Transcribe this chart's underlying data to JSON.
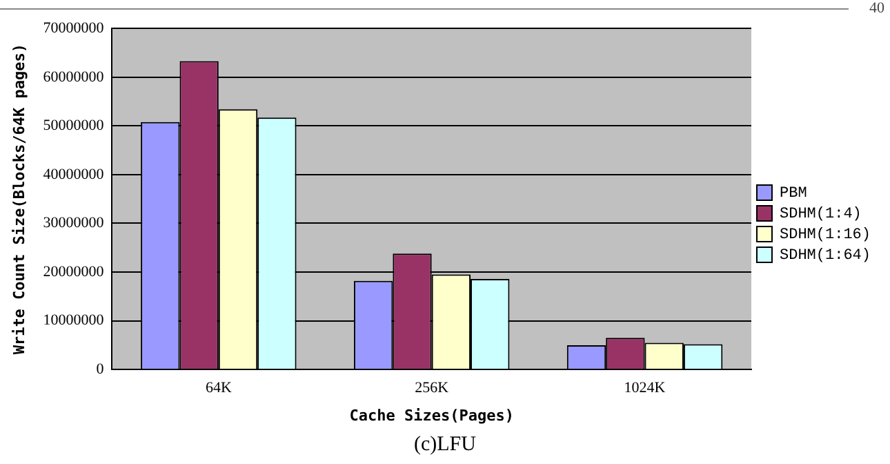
{
  "chart_data": {
    "type": "bar",
    "xlabel": "Cache Sizes(Pages)",
    "ylabel": "Write Count Size(Blocks/64K pages)",
    "categories": [
      "64K",
      "256K",
      "1024K"
    ],
    "series": [
      {
        "name": "PBM",
        "color": "#9999ff",
        "values": [
          50800000,
          18200000,
          5000000
        ]
      },
      {
        "name": "SDHM(1:4)",
        "color": "#993366",
        "values": [
          63300000,
          23800000,
          6500000
        ]
      },
      {
        "name": "SDHM(1:16)",
        "color": "#ffffcc",
        "values": [
          53400000,
          19500000,
          5500000
        ]
      },
      {
        "name": "SDHM(1:64)",
        "color": "#ccffff",
        "values": [
          51700000,
          18600000,
          5200000
        ]
      }
    ],
    "ylim": [
      0,
      70000000
    ],
    "yticks": [
      0,
      10000000,
      20000000,
      30000000,
      40000000,
      50000000,
      60000000,
      70000000
    ],
    "grid": "y",
    "legend": "right",
    "annotations": [
      "40",
      "(c)LFU"
    ]
  }
}
